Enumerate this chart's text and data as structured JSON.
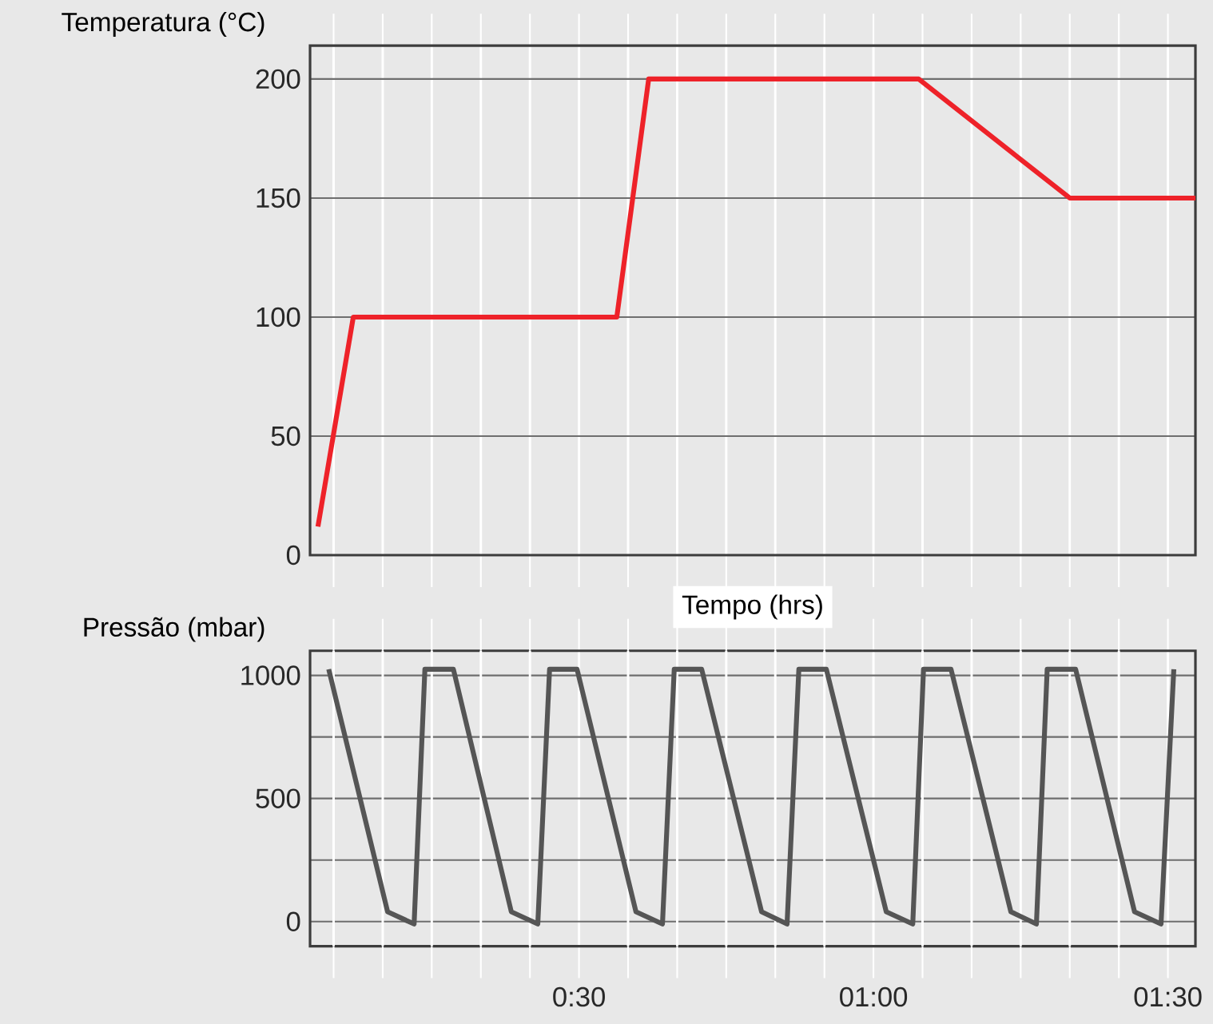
{
  "chart_data": [
    {
      "type": "line",
      "ylabel": "Temperatura (°C)",
      "xlabel": "Tempo (hrs)",
      "tick_labels": "y",
      "grid": true,
      "xlim": [
        0.0433,
        1.5467
      ],
      "ylim": [
        0,
        214
      ],
      "xticks": [
        {
          "value": 0.0833,
          "label": null
        },
        {
          "value": 0.1667,
          "label": null
        },
        {
          "value": 0.25,
          "label": null
        },
        {
          "value": 0.3333,
          "label": null
        },
        {
          "value": 0.4167,
          "label": null
        },
        {
          "value": 0.5,
          "label": null
        },
        {
          "value": 0.5833,
          "label": null
        },
        {
          "value": 0.6667,
          "label": null
        },
        {
          "value": 0.75,
          "label": null
        },
        {
          "value": 0.8333,
          "label": null
        },
        {
          "value": 0.9167,
          "label": null
        },
        {
          "value": 1.0,
          "label": null
        },
        {
          "value": 1.0833,
          "label": null
        },
        {
          "value": 1.1667,
          "label": null
        },
        {
          "value": 1.25,
          "label": null
        },
        {
          "value": 1.3333,
          "label": null
        },
        {
          "value": 1.4167,
          "label": null
        },
        {
          "value": 1.5,
          "label": null
        }
      ],
      "yticks": [
        0,
        50,
        100,
        150,
        200
      ],
      "series": [
        {
          "color": "#ee2229",
          "x": [
            0.0567,
            0.1167,
            0.5642,
            0.6183,
            1.0767,
            1.3333,
            1.5467
          ],
          "values": [
            12,
            100,
            100,
            200,
            200,
            150,
            150
          ]
        }
      ]
    },
    {
      "type": "line",
      "ylabel": "Pressão (mbar)",
      "grid": true,
      "xlim": [
        0.0433,
        1.5467
      ],
      "ylim": [
        -100,
        1100
      ],
      "xticks": [
        {
          "value": 0.5,
          "label": "0:30"
        },
        {
          "value": 1.0,
          "label": "01:00"
        },
        {
          "value": 1.5,
          "label": "01:30"
        }
      ],
      "yticks": [
        0,
        {
          "value": 250,
          "label": null
        },
        500,
        {
          "value": 750,
          "label": null
        },
        1000
      ],
      "series": [
        {
          "color": "#555555",
          "x": [
            0.075,
            0.175,
            0.22,
            0.2383,
            0.2867,
            0.385,
            0.43,
            0.45,
            0.4967,
            0.5967,
            0.6417,
            0.6617,
            0.7083,
            0.81,
            0.8533,
            0.8733,
            0.92,
            1.0217,
            1.0667,
            1.085,
            1.1317,
            1.2333,
            1.2767,
            1.295,
            1.3433,
            1.4433,
            1.4883,
            1.51
          ],
          "values": [
            1025,
            40,
            -10,
            1025,
            1025,
            40,
            -10,
            1025,
            1025,
            40,
            -10,
            1025,
            1025,
            40,
            -10,
            1025,
            1025,
            40,
            -10,
            1025,
            1025,
            40,
            -10,
            1025,
            1025,
            40,
            -10,
            1025
          ]
        }
      ]
    }
  ]
}
